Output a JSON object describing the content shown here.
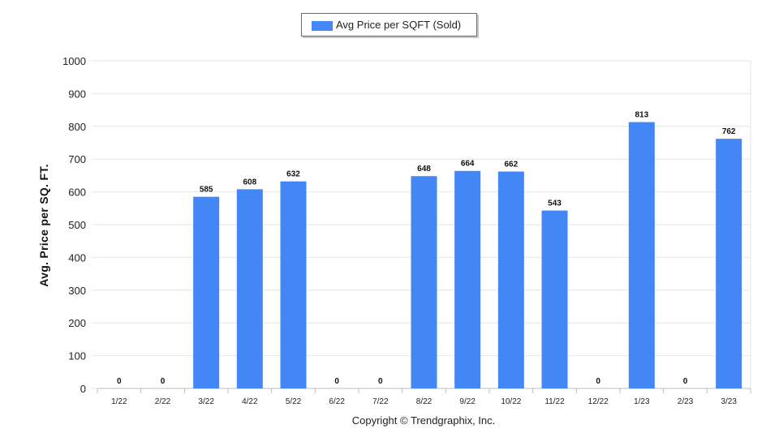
{
  "colors": {
    "bar": "#4287f5",
    "grid": "#e6e6e6",
    "axis": "#bdbdbd"
  },
  "legend": {
    "label": "Avg Price per SQFT (Sold)",
    "position": "top-center"
  },
  "footer": {
    "copyright": "Copyright © Trendgraphix, Inc."
  },
  "chart_data": {
    "type": "bar",
    "categories": [
      "1/22",
      "2/22",
      "3/22",
      "4/22",
      "5/22",
      "6/22",
      "7/22",
      "8/22",
      "9/22",
      "10/22",
      "11/22",
      "12/22",
      "1/23",
      "2/23",
      "3/23"
    ],
    "series": [
      {
        "name": "Avg Price per SQFT (Sold)",
        "values": [
          0,
          0,
          585,
          608,
          632,
          0,
          0,
          648,
          664,
          662,
          543,
          0,
          813,
          0,
          762
        ]
      }
    ],
    "data_labels": [
      "0",
      "0",
      "585",
      "608",
      "632",
      "0",
      "0",
      "648",
      "664",
      "662",
      "543",
      "0",
      "813",
      "0",
      "762"
    ],
    "ylabel": "Avg. Price per SQ. FT.",
    "xlabel": "",
    "ylim": [
      0,
      1000
    ],
    "yticks": [
      "0",
      "100",
      "200",
      "300",
      "400",
      "500",
      "600",
      "700",
      "800",
      "900",
      "1000"
    ],
    "yticks_values": [
      0,
      100,
      200,
      300,
      400,
      500,
      600,
      700,
      800,
      900,
      1000
    ],
    "grid": true
  }
}
